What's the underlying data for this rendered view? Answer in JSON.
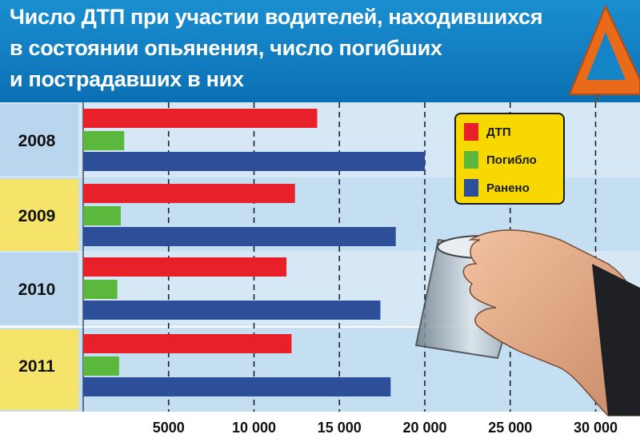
{
  "title_lines": [
    "Число ДТП при участии водителей, находившихся",
    "в состоянии опьянения, число погибших",
    "и пострадавших в них"
  ],
  "colors": {
    "dtp": "#e8202a",
    "killed": "#5cb83c",
    "injured": "#2d4f9a",
    "header": "#0b6fb3",
    "legend_bg": "#f7d800"
  },
  "legend": {
    "items": [
      {
        "label": "ДТП",
        "color": "#e8202a"
      },
      {
        "label": "Погибло",
        "color": "#5cb83c"
      },
      {
        "label": "Ранено",
        "color": "#2d4f9a"
      }
    ]
  },
  "chart_data": {
    "type": "bar",
    "orientation": "horizontal",
    "categories": [
      "2008",
      "2009",
      "2010",
      "2011"
    ],
    "series": [
      {
        "name": "ДТП",
        "values": [
          13700,
          12400,
          11900,
          12200
        ]
      },
      {
        "name": "Погибло",
        "values": [
          2400,
          2200,
          2000,
          2100
        ]
      },
      {
        "name": "Ранено",
        "values": [
          20000,
          18300,
          17400,
          18000
        ]
      }
    ],
    "x_ticks": [
      "5000",
      "10 000",
      "15 000",
      "20 000",
      "25 000",
      "30 000"
    ],
    "x_tick_values": [
      5000,
      10000,
      15000,
      20000,
      25000,
      30000
    ],
    "xlim": [
      0,
      30000
    ],
    "grid": true,
    "legend_position": "top-right"
  }
}
